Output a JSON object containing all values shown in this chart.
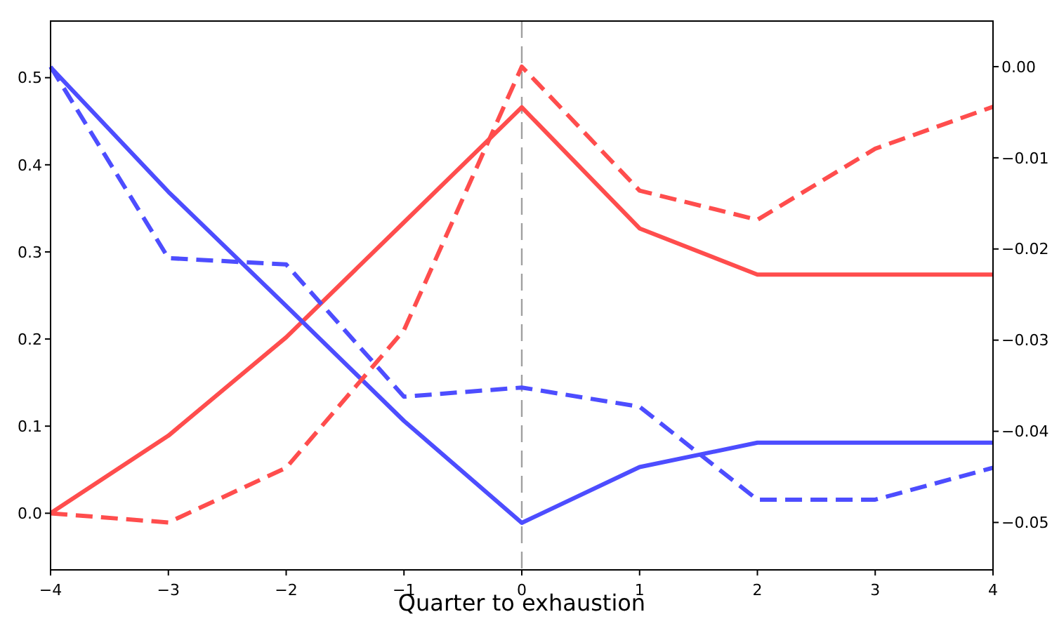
{
  "chart_data": {
    "type": "line",
    "xlabel": "Quarter to exhaustion",
    "x": [
      -4,
      -3,
      -2,
      -1,
      0,
      1,
      2,
      3,
      4
    ],
    "series": [
      {
        "color": "#ff4d4d",
        "line_style": "solid",
        "values": [
          0.0,
          0.089,
          0.202,
          0.334,
          0.466,
          0.327,
          0.274,
          0.274,
          0.274
        ]
      },
      {
        "color": "#4d4dff",
        "line_style": "solid",
        "values": [
          0.512,
          0.369,
          0.238,
          0.106,
          -0.011,
          0.053,
          0.081,
          0.081,
          0.081
        ]
      },
      {
        "color": "#ff4d4d",
        "line_style": "dashed",
        "axis": "y2",
        "values": [
          -0.049,
          -0.05,
          -0.044,
          -0.0289,
          0.0,
          -0.0136,
          -0.0168,
          -0.009,
          -0.0044
        ]
      },
      {
        "color": "#4d4dff",
        "line_style": "dashed",
        "axis": "y2",
        "values": [
          0.0,
          -0.021,
          -0.0217,
          -0.0362,
          -0.0352,
          -0.0373,
          -0.0475,
          -0.0475,
          -0.044
        ]
      }
    ],
    "xlim": [
      -4,
      4
    ],
    "xticks": [
      {
        "value": -4,
        "label": "−4"
      },
      {
        "value": -3,
        "label": "−3"
      },
      {
        "value": -2,
        "label": "−2"
      },
      {
        "value": -1,
        "label": "−1"
      },
      0,
      1,
      2,
      3,
      4
    ],
    "ylim": [
      -0.065,
      0.565
    ],
    "yticks": [
      {
        "value": 0,
        "label": "0.0"
      },
      0.1,
      0.2,
      0.3,
      0.4,
      0.5
    ],
    "y2lim": [
      -0.0552,
      0.005
    ],
    "y2ticks": [
      {
        "value": 0,
        "label": "0.00"
      },
      {
        "value": -0.01,
        "label": "−0.01"
      },
      {
        "value": -0.02,
        "label": "−0.02"
      },
      {
        "value": -0.03,
        "label": "−0.03"
      },
      {
        "value": -0.04,
        "label": "−0.04"
      },
      {
        "value": -0.05,
        "label": "−0.05"
      }
    ],
    "ref_lines": [
      {
        "axis": "x",
        "value": 0,
        "color": "#a0a0a0",
        "line_style": "dashed"
      }
    ],
    "grid": false,
    "marker": "none"
  }
}
